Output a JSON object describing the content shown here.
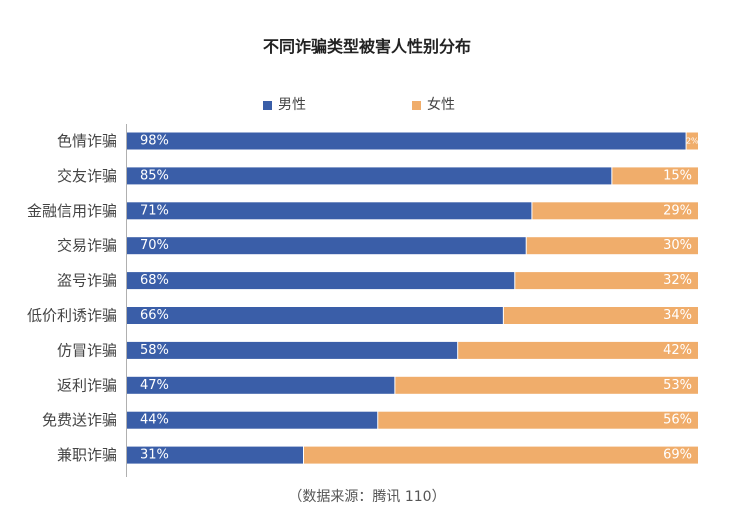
{
  "chart_data": {
    "type": "bar",
    "orientation": "horizontal",
    "stacked": true,
    "percent_stacked": true,
    "title": "不同诈骗类型被害人性别分布",
    "categories": [
      "色情诈骗",
      "交友诈骗",
      "金融信用诈骗",
      "交易诈骗",
      "盗号诈骗",
      "低价利诱诈骗",
      "仿冒诈骗",
      "返利诈骗",
      "免费送诈骗",
      "兼职诈骗"
    ],
    "series": [
      {
        "name": "男性",
        "color": "#3a5ea8",
        "values": [
          98,
          85,
          71,
          70,
          68,
          66,
          58,
          47,
          44,
          31
        ],
        "labels": [
          "98%",
          "85%",
          "71%",
          "70%",
          "68%",
          "66%",
          "58%",
          "47%",
          "44%",
          "31%"
        ]
      },
      {
        "name": "女性",
        "color": "#f0ad6b",
        "values": [
          2,
          15,
          29,
          30,
          32,
          34,
          42,
          53,
          56,
          69
        ],
        "labels": [
          "2%",
          "15%",
          "29%",
          "30%",
          "32%",
          "34%",
          "42%",
          "53%",
          "56%",
          "69%"
        ]
      }
    ],
    "xlim": [
      0,
      100
    ],
    "legend_position": "top",
    "grid": false
  },
  "source_note": "（数据来源：腾讯 110）"
}
